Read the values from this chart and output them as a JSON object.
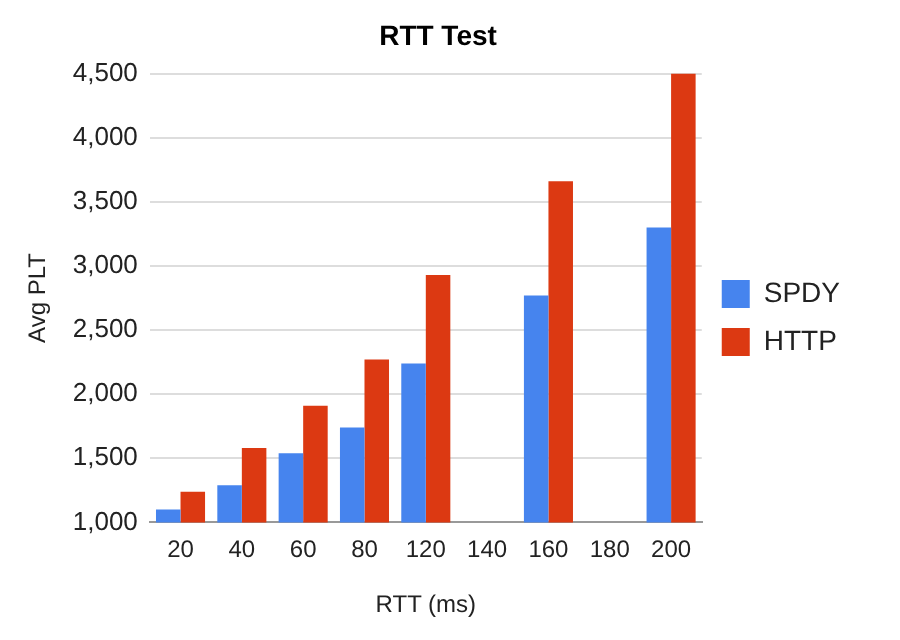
{
  "chart_data": {
    "type": "bar",
    "title": "RTT Test",
    "xlabel": "RTT (ms)",
    "ylabel": "Avg PLT",
    "categories": [
      "20",
      "40",
      "60",
      "80",
      "120",
      "140",
      "160",
      "180",
      "200"
    ],
    "series": [
      {
        "name": "SPDY",
        "color": "#4684ee",
        "values": [
          1100,
          1290,
          1540,
          1740,
          2240,
          null,
          2770,
          null,
          3300
        ]
      },
      {
        "name": "HTTP",
        "color": "#dc3912",
        "values": [
          1240,
          1580,
          1910,
          2270,
          2930,
          null,
          3660,
          null,
          4500
        ]
      }
    ],
    "ylim": [
      1000,
      4500
    ],
    "yticks": [
      {
        "value": 1000,
        "label": "1,000"
      },
      {
        "value": 1500,
        "label": "1,500"
      },
      {
        "value": 2000,
        "label": "2,000"
      },
      {
        "value": 2500,
        "label": "2,500"
      },
      {
        "value": 3000,
        "label": "3,000"
      },
      {
        "value": 3500,
        "label": "3,500"
      },
      {
        "value": 4000,
        "label": "4,000"
      },
      {
        "value": 4500,
        "label": "4,500"
      }
    ],
    "grid": "y",
    "legend": "right"
  }
}
